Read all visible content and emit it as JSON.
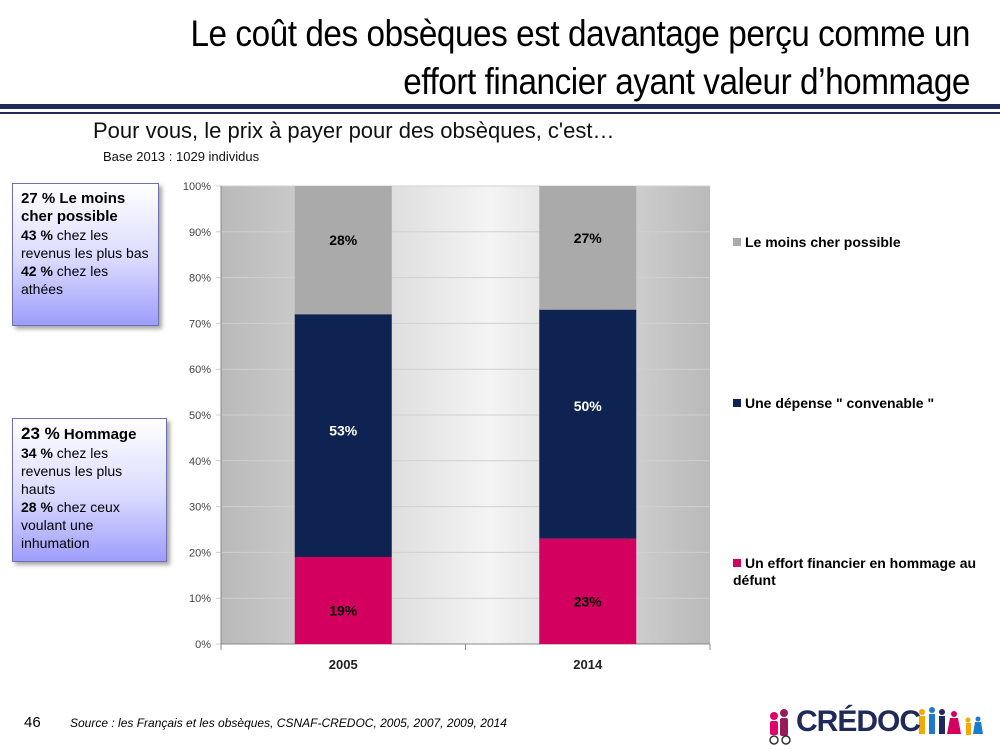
{
  "header": {
    "title_line1": "Le coût des obsèques est davantage perçu comme un",
    "title_line2": "effort financier ayant valeur d’hommage",
    "subtitle": "Pour vous, le prix à payer pour des obsèques, c'est…",
    "base": "Base 2013 : 1029 individus"
  },
  "callouts": [
    {
      "head": "27 % Le moins cher possible",
      "lines": [
        {
          "bold": "43 %",
          "text": " chez les revenus les plus bas"
        },
        {
          "bold": "42 %",
          "text": " chez les athées"
        }
      ]
    },
    {
      "head_big": "23 %",
      "head": " Hommage",
      "lines": [
        {
          "bold": "34 %",
          "text": " chez les revenus les plus hauts"
        },
        {
          "bold": "28 %",
          "text": " chez ceux voulant une inhumation"
        }
      ]
    }
  ],
  "chart_data": {
    "type": "bar",
    "stacked": true,
    "percent": true,
    "categories": [
      "2005",
      "2014"
    ],
    "series": [
      {
        "name": "Un effort financier en hommage au défunt",
        "values": [
          19,
          23
        ],
        "labels": [
          "19%",
          "23%"
        ],
        "color": "#d3005f"
      },
      {
        "name": "Une dépense \" convenable \"",
        "values": [
          53,
          50
        ],
        "labels": [
          "53%",
          "50%"
        ],
        "color": "#0e2352"
      },
      {
        "name": "Le moins cher possible",
        "values": [
          28,
          27
        ],
        "labels": [
          "28%",
          "27%"
        ],
        "color": "#aaaaaa"
      }
    ],
    "ylim": [
      0,
      100
    ],
    "yticks": [
      "0%",
      "10%",
      "20%",
      "30%",
      "40%",
      "50%",
      "60%",
      "70%",
      "80%",
      "90%",
      "100%"
    ],
    "grid": true,
    "legend_position": "right",
    "legend_order": [
      "Le moins cher possible",
      "Une dépense \" convenable \"",
      "Un effort financier en hommage au défunt"
    ]
  },
  "footer": {
    "page_number": "46",
    "source": "Source : les Français et les obsèques, CSNAF-CREDOC, 2005, 2007, 2009, 2014",
    "logo_text": "CRÉDOC"
  },
  "colors": {
    "rule": "#1f2a5a",
    "logo": "#1f2a5a"
  }
}
